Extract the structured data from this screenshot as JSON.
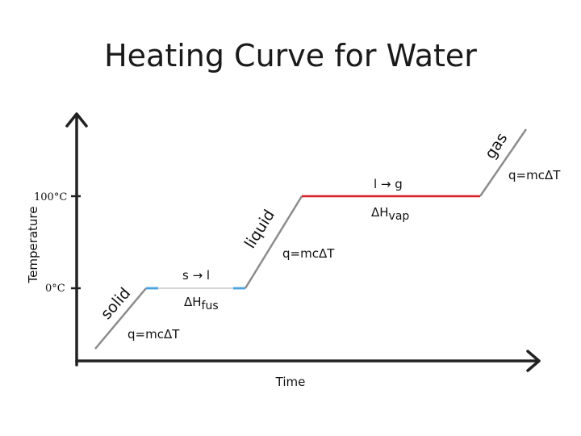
{
  "title": "Heating Curve for Water",
  "axes": {
    "x_label": "Time",
    "y_label": "Temperature"
  },
  "y_ticks": {
    "t0": "0°C",
    "t100": "100°C"
  },
  "phases": {
    "solid": "solid",
    "liquid": "liquid",
    "gas": "gas"
  },
  "transitions": {
    "melting": "s → l",
    "boiling": "l → g"
  },
  "enthalpy": {
    "fusion": {
      "symbol": "ΔH",
      "sub": "fus"
    },
    "vaporization": {
      "symbol": "ΔH",
      "sub": "vap"
    }
  },
  "equations": {
    "solid": "q=mcΔT",
    "liquid": "q=mcΔT",
    "gas": "q=mcΔT"
  },
  "colors": {
    "axis": "#222222",
    "slope": "#8c8c8c",
    "melting_plateau": "#4aa3df",
    "boiling_plateau": "#d9202a"
  }
}
